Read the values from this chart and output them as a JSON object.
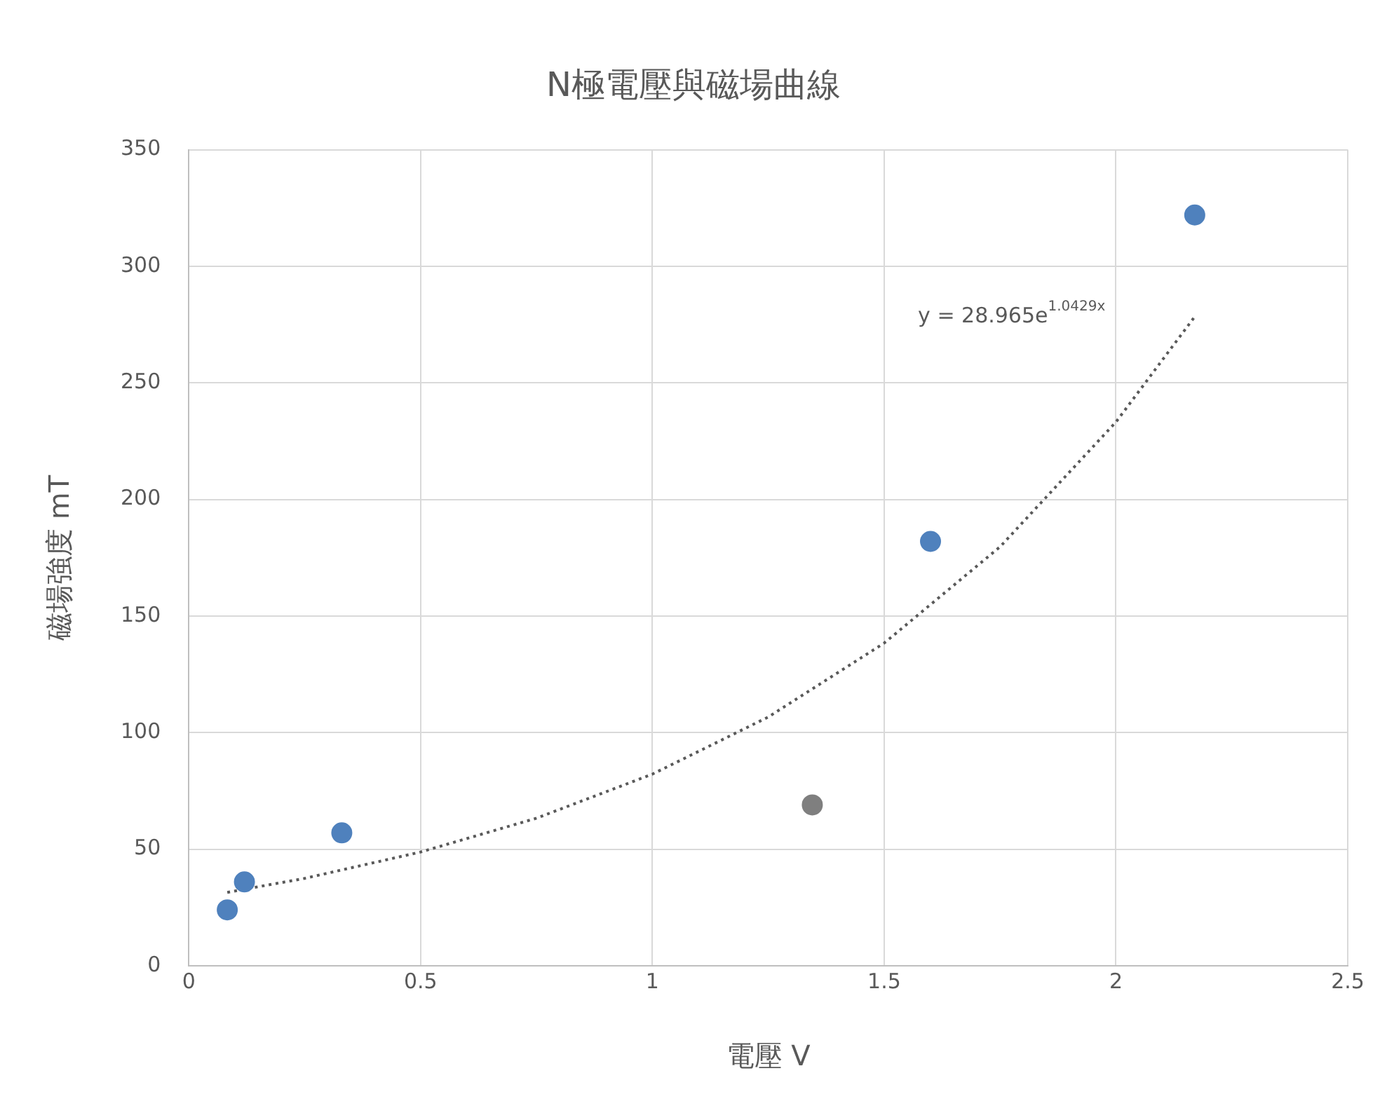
{
  "chart_data": {
    "type": "scatter",
    "title": "N極電壓與磁場曲線",
    "xlabel": "電壓 V",
    "ylabel": "磁場強度 mT",
    "xlim": [
      0,
      2.5
    ],
    "xticks": [
      0,
      0.5,
      1,
      1.5,
      2,
      2.5
    ],
    "ylim": [
      0,
      350
    ],
    "yticks": [
      0,
      50,
      100,
      150,
      200,
      250,
      300,
      350
    ],
    "grid": true,
    "legend": false,
    "marker": "circle",
    "series": [
      {
        "colors": [
          "#4f81bd",
          "#4f81bd",
          "#4f81bd",
          "#7f7f7f",
          "#4f81bd",
          "#4f81bd"
        ],
        "x": [
          0.083,
          0.12,
          0.33,
          1.345,
          1.6,
          2.17
        ],
        "values": [
          24,
          36,
          57,
          69,
          182,
          322
        ]
      },
      {
        "type": "line",
        "color": "#595959",
        "line_style": "dotted",
        "marker": "none",
        "x": [
          0.083,
          0.25,
          0.5,
          0.75,
          1,
          1.25,
          1.5,
          1.75,
          2,
          2.17
        ],
        "values": [
          31.5,
          37.5,
          48.8,
          63.3,
          82.2,
          106.7,
          138.4,
          179.7,
          233.2,
          278.4
        ]
      }
    ],
    "annotations": [
      "y = 28.965e$^{1.0429x}$"
    ]
  }
}
